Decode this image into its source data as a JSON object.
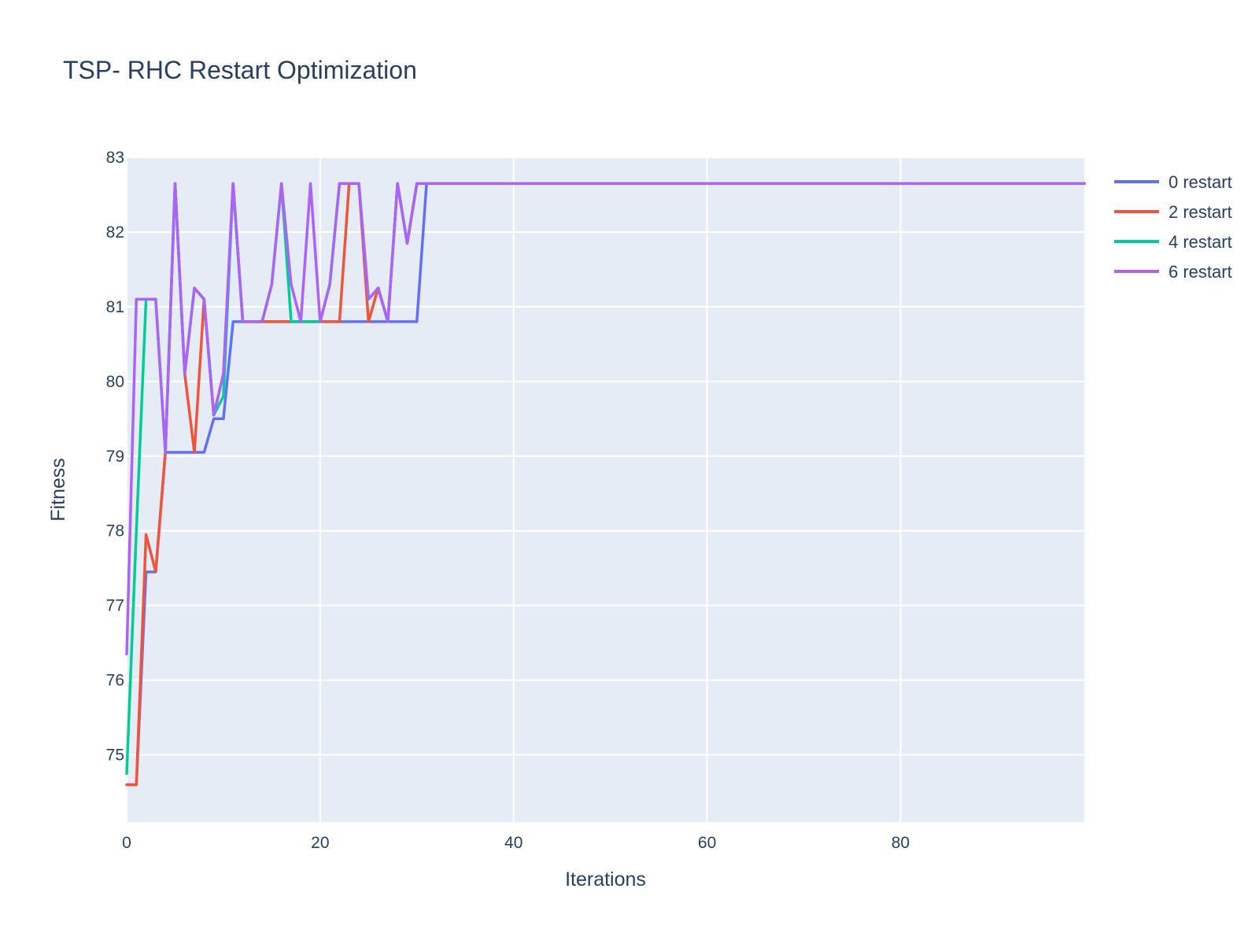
{
  "chart_data": {
    "type": "line",
    "title": "TSP- RHC Restart Optimization",
    "xlabel": "Iterations",
    "ylabel": "Fitness",
    "xlim": [
      0,
      99
    ],
    "ylim": [
      74.1,
      83.0
    ],
    "x_ticks": [
      0,
      20,
      40,
      60,
      80
    ],
    "y_ticks": [
      75,
      76,
      77,
      78,
      79,
      80,
      81,
      82,
      83
    ],
    "grid": true,
    "plot_background": "#e5ecf6",
    "legend_position": "top-right",
    "series": [
      {
        "name": "0 restart",
        "color": "#636efa",
        "x": [
          0,
          1,
          2,
          3,
          4,
          5,
          6,
          7,
          8,
          9,
          10,
          11,
          12,
          13,
          14,
          15,
          16,
          17,
          18,
          19,
          20,
          21,
          22,
          23,
          24,
          25,
          26,
          27,
          28,
          29,
          30,
          31,
          99
        ],
        "y": [
          74.6,
          74.6,
          77.45,
          77.45,
          79.05,
          79.05,
          79.05,
          79.05,
          79.05,
          79.5,
          79.5,
          80.8,
          80.8,
          80.8,
          80.8,
          80.8,
          80.8,
          80.8,
          80.8,
          80.8,
          80.8,
          80.8,
          80.8,
          80.8,
          80.8,
          80.8,
          80.8,
          80.8,
          80.8,
          80.8,
          80.8,
          82.65,
          82.65
        ]
      },
      {
        "name": "2 restart",
        "color": "#ef553b",
        "x": [
          0,
          1,
          2,
          3,
          4,
          5,
          6,
          7,
          8,
          9,
          10,
          11,
          12,
          13,
          14,
          15,
          16,
          17,
          18,
          19,
          20,
          21,
          22,
          23,
          24,
          25,
          26,
          27,
          28,
          29,
          30,
          99
        ],
        "y": [
          74.6,
          74.6,
          77.95,
          77.45,
          79.05,
          82.65,
          80.1,
          79.05,
          81.1,
          79.55,
          80.1,
          82.65,
          80.8,
          80.8,
          80.8,
          80.8,
          80.8,
          80.8,
          80.8,
          80.8,
          80.8,
          80.8,
          80.8,
          82.65,
          82.65,
          80.8,
          81.25,
          80.8,
          82.65,
          81.85,
          82.65,
          82.65
        ]
      },
      {
        "name": "4 restart",
        "color": "#00cc96",
        "x": [
          0,
          1,
          2,
          3,
          4,
          5,
          6,
          7,
          8,
          9,
          10,
          11,
          12,
          13,
          14,
          15,
          16,
          17,
          18,
          19,
          20,
          21,
          22,
          23,
          24,
          25,
          26,
          27,
          28,
          29,
          30,
          99
        ],
        "y": [
          74.75,
          78.0,
          81.1,
          81.1,
          79.05,
          82.65,
          80.1,
          81.25,
          81.1,
          79.55,
          79.8,
          82.65,
          80.8,
          80.8,
          80.8,
          81.3,
          82.65,
          80.8,
          80.8,
          80.8,
          80.8,
          81.3,
          82.65,
          82.65,
          82.65,
          81.1,
          81.25,
          80.8,
          82.65,
          81.85,
          82.65,
          82.65
        ]
      },
      {
        "name": "6 restart",
        "color": "#ab63fa",
        "x": [
          0,
          1,
          2,
          3,
          4,
          5,
          6,
          7,
          8,
          9,
          10,
          11,
          12,
          13,
          14,
          15,
          16,
          17,
          18,
          19,
          20,
          21,
          22,
          23,
          24,
          25,
          26,
          27,
          28,
          29,
          30,
          99
        ],
        "y": [
          76.35,
          81.1,
          81.1,
          81.1,
          79.05,
          82.65,
          80.1,
          81.25,
          81.1,
          79.55,
          80.1,
          82.65,
          80.8,
          80.8,
          80.8,
          81.3,
          82.65,
          81.3,
          80.8,
          82.65,
          80.8,
          81.3,
          82.65,
          82.65,
          82.65,
          81.1,
          81.25,
          80.8,
          82.65,
          81.85,
          82.65,
          82.65
        ]
      }
    ]
  }
}
